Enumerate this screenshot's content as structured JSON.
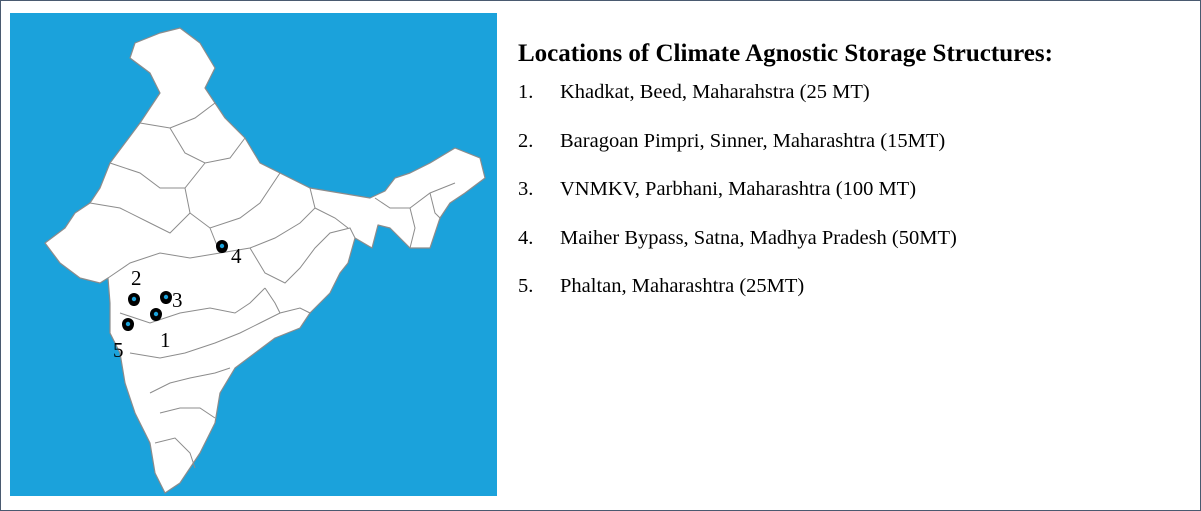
{
  "legend": {
    "title": "Locations of Climate Agnostic Storage Structures:",
    "items": [
      {
        "num": "1.",
        "text": "Khadkat, Beed, Maharahstra (25 MT)"
      },
      {
        "num": "2.",
        "text": "Baragoan Pimpri, Sinner, Maharashtra (15MT)"
      },
      {
        "num": "3.",
        "text": "VNMKV, Parbhani, Maharashtra (100 MT)"
      },
      {
        "num": "4.",
        "text": "Maiher Bypass, Satna, Madhya Pradesh (50MT)"
      },
      {
        "num": "5.",
        "text": "Phaltan, Maharashtra (25MT)"
      }
    ]
  },
  "map": {
    "sea_color": "#1ba2db",
    "land_color": "#ffffff",
    "border_color": "#8c8c8c",
    "pin_icon": "map-pin-icon",
    "pins": [
      {
        "label": "1"
      },
      {
        "label": "2"
      },
      {
        "label": "3"
      },
      {
        "label": "4"
      },
      {
        "label": "5"
      }
    ]
  }
}
